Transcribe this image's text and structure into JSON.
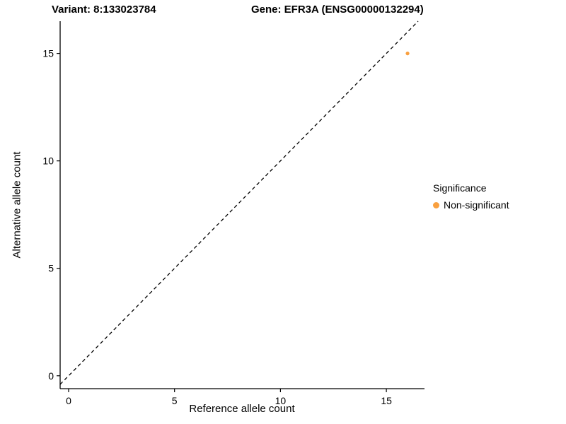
{
  "chart_data": {
    "type": "scatter",
    "title_left": "Variant: 8:133023784",
    "title_right": "Gene: EFR3A (ENSG00000132294)",
    "xlabel": "Reference allele count",
    "ylabel": "Alternative allele count",
    "xlim": [
      -0.4,
      16.8
    ],
    "ylim": [
      -0.6,
      16.5
    ],
    "x_ticks": [
      0,
      5,
      10,
      15
    ],
    "y_ticks": [
      0,
      5,
      10,
      15
    ],
    "grid": false,
    "points": [
      {
        "x": 16,
        "y": 15,
        "series": "Non-significant",
        "color": "#F9A03F"
      }
    ],
    "reference_line": {
      "type": "identity",
      "style": "dashed",
      "color": "#000000"
    },
    "legend": {
      "title": "Significance",
      "position": "right",
      "entries": [
        {
          "label": "Non-significant",
          "color": "#F9A03F"
        }
      ]
    }
  }
}
